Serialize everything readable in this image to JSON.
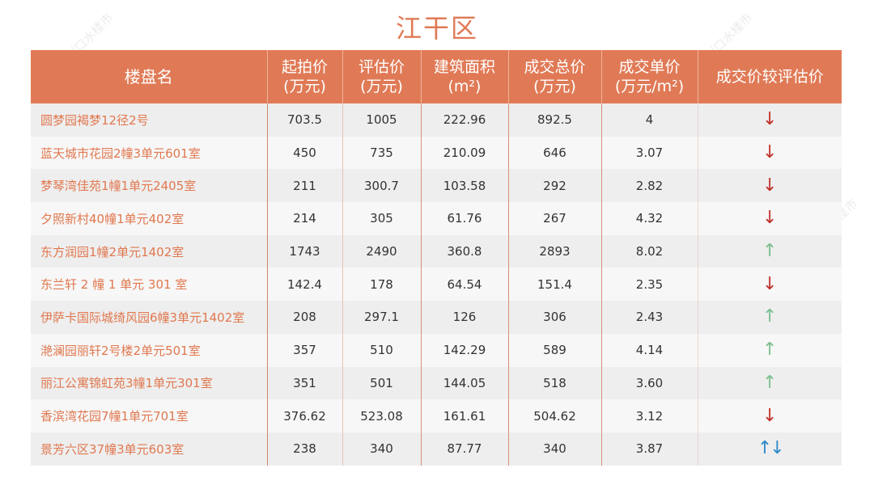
{
  "title": "江干区",
  "watermark": "杭州口水楼市",
  "colors": {
    "header_bg": "#e07a56",
    "name_text": "#e0784f",
    "down_arrow": "#c0322b",
    "up_arrow": "#7bbf8e",
    "mixed_arrow": "#2b88c8"
  },
  "table": {
    "headers": [
      {
        "line1": "楼盘名",
        "line2": ""
      },
      {
        "line1": "起拍价",
        "line2": "(万元)"
      },
      {
        "line1": "评估价",
        "line2": "(万元)"
      },
      {
        "line1": "建筑面积",
        "line2": "(m²)"
      },
      {
        "line1": "成交总价",
        "line2": "(万元)"
      },
      {
        "line1": "成交单价",
        "line2": "(万元/m²)"
      },
      {
        "line1": "成交价较评估价",
        "line2": ""
      }
    ],
    "rows": [
      {
        "name": "圆梦园褐梦12径2号",
        "start_price": "703.5",
        "appraisal": "1005",
        "area": "222.96",
        "total": "892.5",
        "unit": "4",
        "trend": "↓",
        "trend_type": "down"
      },
      {
        "name": "蓝天城市花园2幢3单元601室",
        "start_price": "450",
        "appraisal": "735",
        "area": "210.09",
        "total": "646",
        "unit": "3.07",
        "trend": "↓",
        "trend_type": "down"
      },
      {
        "name": "梦琴湾佳苑1幢1单元2405室",
        "start_price": "211",
        "appraisal": "300.7",
        "area": "103.58",
        "total": "292",
        "unit": "2.82",
        "trend": "↓",
        "trend_type": "down"
      },
      {
        "name": "夕照新村40幢1单元402室",
        "start_price": "214",
        "appraisal": "305",
        "area": "61.76",
        "total": "267",
        "unit": "4.32",
        "trend": "↓",
        "trend_type": "down"
      },
      {
        "name": "东方润园1幢2单元1402室",
        "start_price": "1743",
        "appraisal": "2490",
        "area": "360.8",
        "total": "2893",
        "unit": "8.02",
        "trend": "↑",
        "trend_type": "up"
      },
      {
        "name": "东兰轩 2 幢 1 单元 301 室",
        "start_price": "142.4",
        "appraisal": "178",
        "area": "64.54",
        "total": "151.4",
        "unit": "2.35",
        "trend": "↓",
        "trend_type": "down"
      },
      {
        "name": "伊萨卡国际城绮风园6幢3单元1402室",
        "start_price": "208",
        "appraisal": "297.1",
        "area": "126",
        "total": "306",
        "unit": "2.43",
        "trend": "↑",
        "trend_type": "up"
      },
      {
        "name": "滟澜园丽轩2号楼2单元501室",
        "start_price": "357",
        "appraisal": "510",
        "area": "142.29",
        "total": "589",
        "unit": "4.14",
        "trend": "↑",
        "trend_type": "up"
      },
      {
        "name": "丽江公寓锦虹苑3幢1单元301室",
        "start_price": "351",
        "appraisal": "501",
        "area": "144.05",
        "total": "518",
        "unit": "3.60",
        "trend": "↑",
        "trend_type": "up"
      },
      {
        "name": "香滨湾花园7幢1单元701室",
        "start_price": "376.62",
        "appraisal": "523.08",
        "area": "161.61",
        "total": "504.62",
        "unit": "3.12",
        "trend": "↓",
        "trend_type": "down"
      },
      {
        "name": "景芳六区37幢3单元603室",
        "start_price": "238",
        "appraisal": "340",
        "area": "87.77",
        "total": "340",
        "unit": "3.87",
        "trend": "↑↓",
        "trend_type": "both"
      }
    ]
  }
}
